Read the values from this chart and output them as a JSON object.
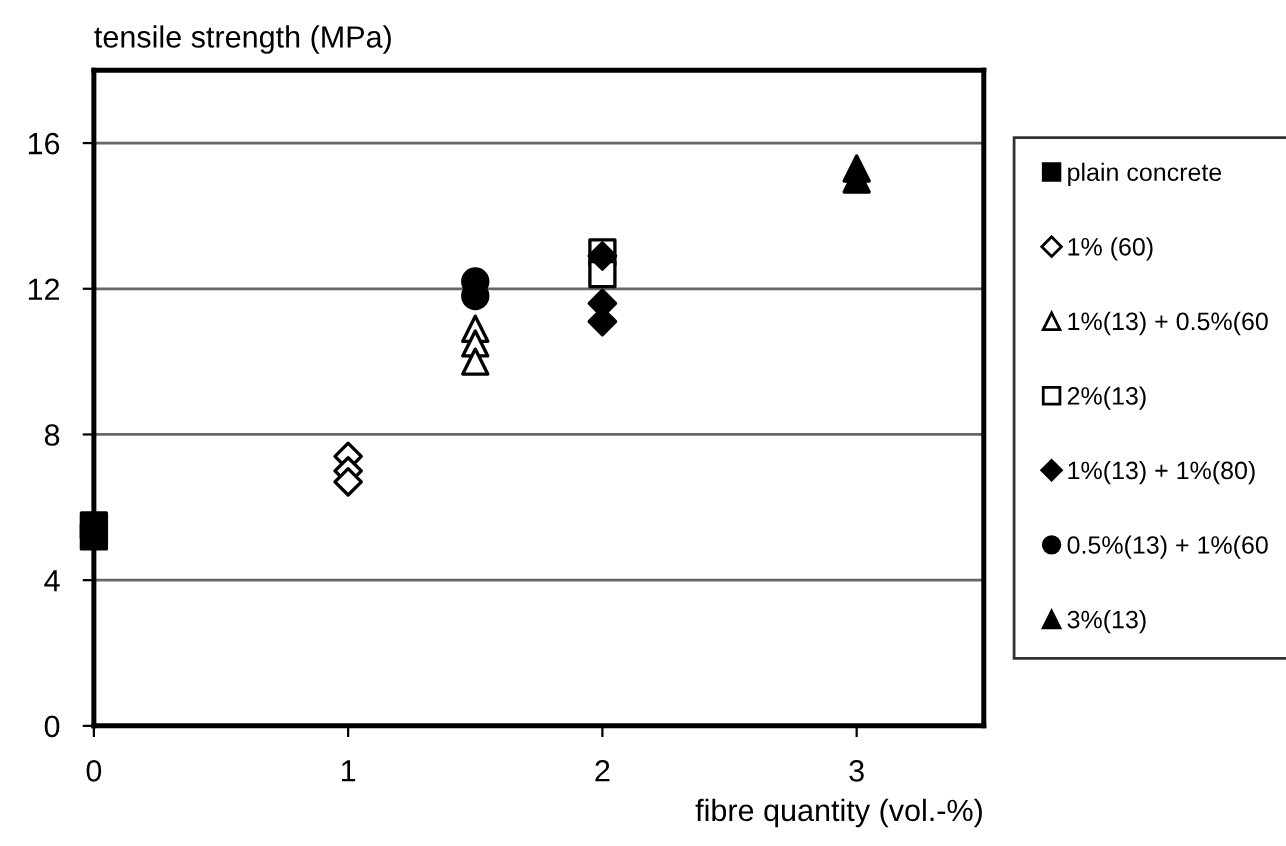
{
  "chart_data": {
    "type": "scatter",
    "xlabel": "fibre quantity (vol.-%)",
    "ylabel": "tensile strength (MPa)",
    "xlim": [
      0,
      3.5
    ],
    "xticks": [
      0,
      1,
      2,
      3
    ],
    "ylim": [
      0,
      18
    ],
    "yticks": [
      0,
      4,
      8,
      12,
      16
    ],
    "grid": "y",
    "legend": "right",
    "series": [
      {
        "name": "plain concrete",
        "color": "#000000",
        "marker": "square",
        "x": [
          0,
          0
        ],
        "values": [
          5.2,
          5.5
        ]
      },
      {
        "name": "1% (60)",
        "color": "#ffffff",
        "marker": "diamond",
        "x": [
          1,
          1,
          1
        ],
        "values": [
          7.4,
          7.0,
          6.7
        ]
      },
      {
        "name": "1%(13) + 0.5%(60",
        "color": "#ffffff",
        "marker": "triangle",
        "x": [
          1.5,
          1.5,
          1.5
        ],
        "values": [
          10.9,
          10.5,
          10.0
        ]
      },
      {
        "name": "2%(13)",
        "color": "#ffffff",
        "marker": "square",
        "x": [
          2,
          2
        ],
        "values": [
          13.0,
          12.4
        ]
      },
      {
        "name": "1%(13) + 1%(80)",
        "color": "#000000",
        "marker": "diamond",
        "x": [
          2,
          2,
          2
        ],
        "values": [
          12.9,
          11.6,
          11.1
        ]
      },
      {
        "name": "0.5%(13) + 1%(60",
        "color": "#000000",
        "marker": "circle",
        "x": [
          1.5,
          1.5
        ],
        "values": [
          12.2,
          11.8
        ]
      },
      {
        "name": "3%(13)",
        "color": "#000000",
        "marker": "triangle",
        "x": [
          3,
          3
        ],
        "values": [
          15.3,
          15.0
        ]
      }
    ]
  }
}
